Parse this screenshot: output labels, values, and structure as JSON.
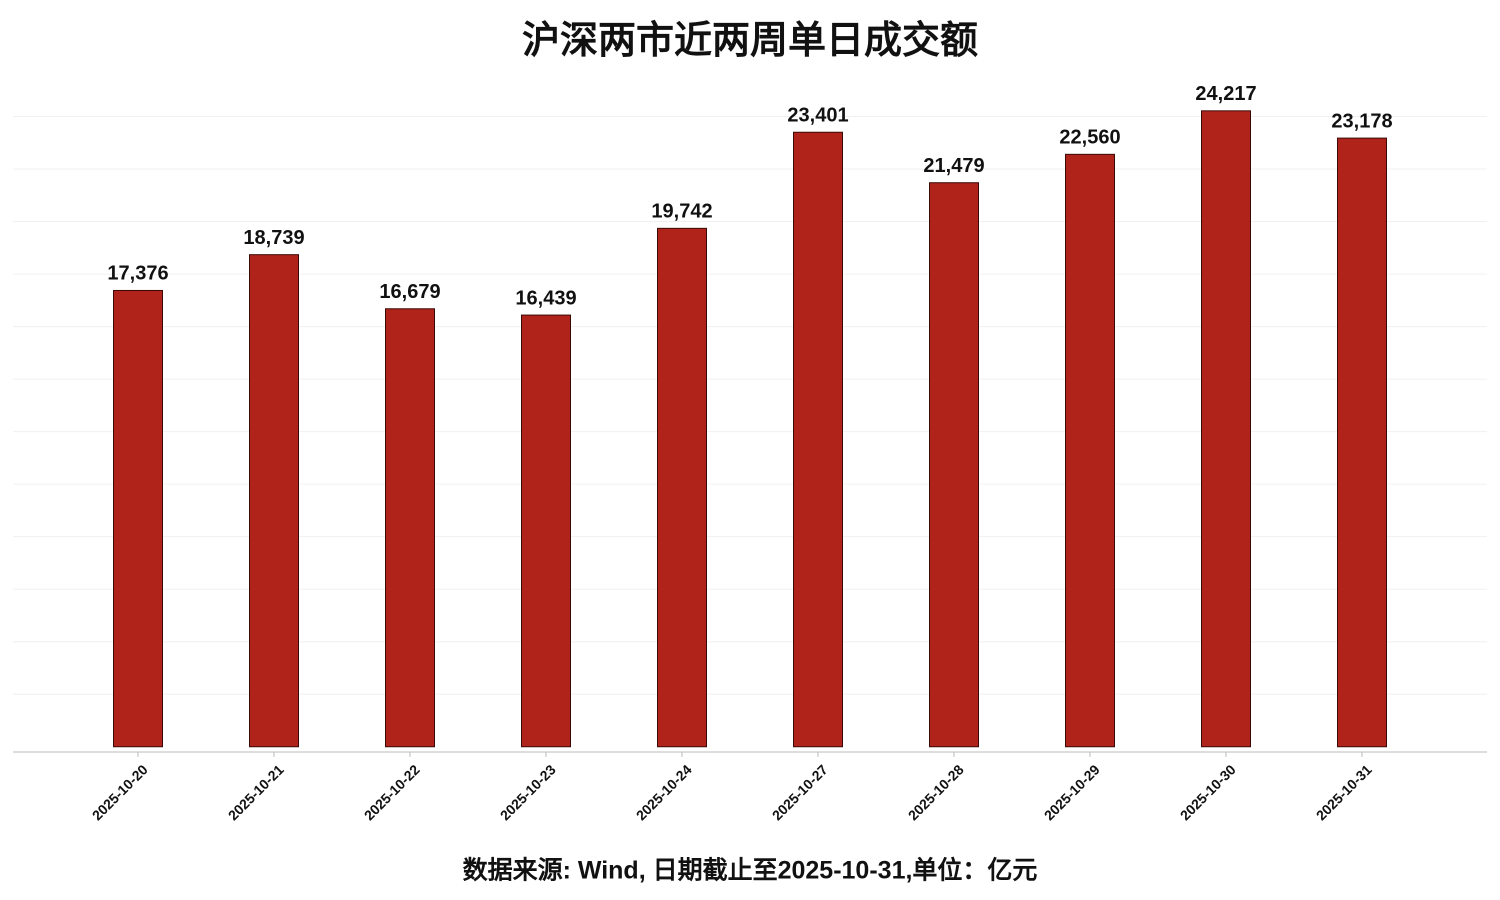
{
  "chart_data": {
    "type": "bar",
    "title": "沪深两市近两周单日成交额",
    "footnote": "数据来源: Wind, 日期截止至2025-10-31,单位：亿元",
    "categories": [
      "2025-10-20",
      "2025-10-21",
      "2025-10-22",
      "2025-10-23",
      "2025-10-24",
      "2025-10-27",
      "2025-10-28",
      "2025-10-29",
      "2025-10-30",
      "2025-10-31"
    ],
    "values": [
      17376,
      18739,
      16679,
      16439,
      19742,
      23401,
      21479,
      22560,
      24217,
      23178
    ],
    "value_labels": [
      "17,376",
      "18,739",
      "16,679",
      "16,439",
      "19,742",
      "23,401",
      "21,479",
      "22,560",
      "24,217",
      "23,178"
    ],
    "color": "#b0231a",
    "ylim": [
      -200,
      26000
    ],
    "yticks": [
      2000,
      4000,
      6000,
      8000,
      10000,
      12000,
      14000,
      16000,
      18000,
      20000,
      22000,
      24000
    ],
    "grid": true
  }
}
